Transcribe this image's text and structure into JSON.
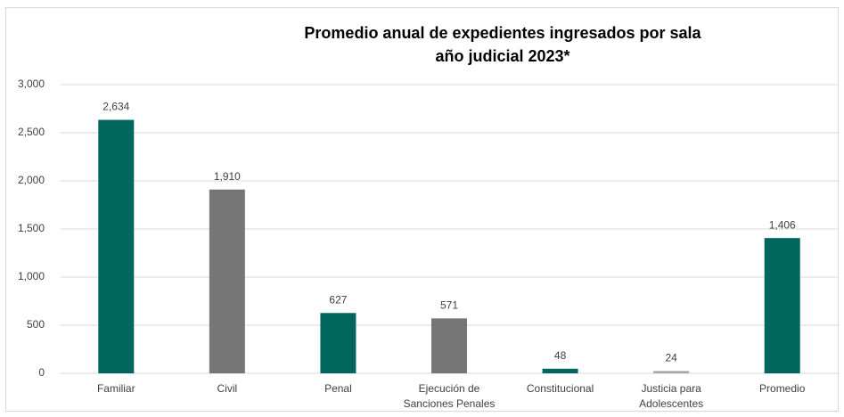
{
  "chart_data": {
    "type": "bar",
    "title": "Promedio anual de expedientes ingresados por sala",
    "subtitle": "año judicial 2023*",
    "categories": [
      "Familiar",
      "Civil",
      "Penal",
      "Ejecución de Sanciones Penales",
      "Constitucional",
      "Justicia para Adolescentes",
      "Promedio"
    ],
    "values": [
      2634,
      1910,
      627,
      571,
      48,
      24,
      1406
    ],
    "value_labels": [
      "2,634",
      "1,910",
      "627",
      "571",
      "48",
      "24",
      "1,406"
    ],
    "colors": [
      "#00665e",
      "#767676",
      "#00665e",
      "#767676",
      "#00665e",
      "#a6a6a6",
      "#00665e"
    ],
    "ylim": [
      0,
      3000
    ],
    "yticks": [
      0,
      500,
      {
        "value": 1000,
        "label": "1,000"
      },
      {
        "value": 1500,
        "label": "1,500"
      },
      {
        "value": 2000,
        "label": "2,000"
      },
      {
        "value": 2500,
        "label": "2,500"
      },
      {
        "value": 3000,
        "label": "3,000"
      }
    ],
    "grid": true
  }
}
